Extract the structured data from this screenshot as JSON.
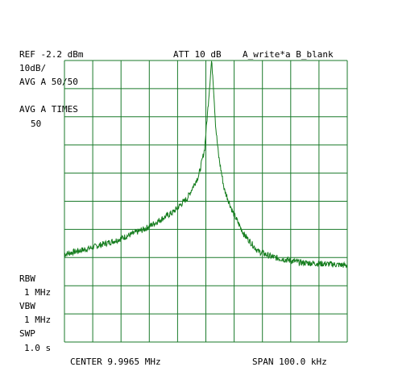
{
  "header": {
    "ref_level": "REF -2.2 dBm",
    "attenuation": "ATT 10 dB",
    "trace_mode": "A_write*a B_blank",
    "scale": "10dB/",
    "averaging": "AVG A 50/50",
    "avg_times_label": "AVG A TIMES",
    "avg_times_value": "50"
  },
  "settings": {
    "rbw_label": "RBW",
    "rbw_value": "1 MHz",
    "vbw_label": "VBW",
    "vbw_value": "1 MHz",
    "swp_label": "SWP",
    "swp_value": "1.0 s"
  },
  "footer": {
    "center": "CENTER 9.9965 MHz",
    "span": "SPAN 100.0 kHz"
  },
  "colors": {
    "grid": "#1a7a2a",
    "trace": "#137c1c",
    "text": "#000000"
  },
  "chart_data": {
    "type": "line",
    "title": "",
    "xlabel": "",
    "ylabel": "",
    "x_unit": "MHz",
    "y_unit": "dBm",
    "xlim": [
      9.9465,
      10.0465
    ],
    "ylim": [
      -102.2,
      -2.2
    ],
    "grid": true,
    "divisions": {
      "x": 10,
      "y": 10
    },
    "series": [
      {
        "x": [
          9.9465,
          9.955,
          9.965,
          9.975,
          9.985,
          9.99,
          9.994,
          9.996,
          9.997,
          9.998,
          9.9985,
          9.999,
          10.0,
          10.001,
          10.003,
          10.006,
          10.01,
          10.015,
          10.02,
          10.025,
          10.03,
          10.04,
          10.0465
        ],
        "y": [
          -71,
          -69,
          -66,
          -62,
          -56,
          -51,
          -43,
          -34,
          -22,
          -9,
          -2.5,
          -8,
          -26,
          -36,
          -48,
          -56,
          -64,
          -70,
          -72,
          -73,
          -74,
          -74.5,
          -75
        ]
      }
    ]
  }
}
